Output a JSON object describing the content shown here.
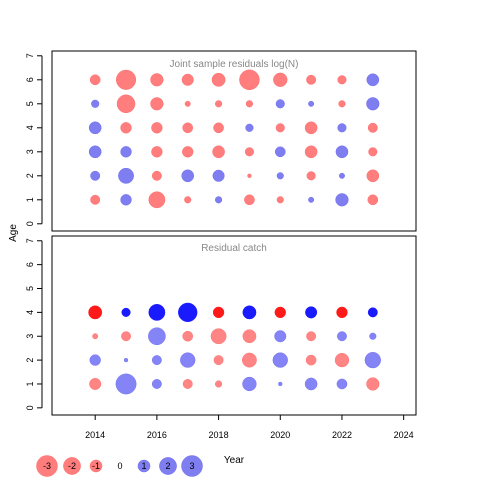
{
  "chart_data": [
    {
      "type": "bubble",
      "title": "Joint sample residuals log(N)",
      "ylabel": "Age",
      "ylim": [
        -0.3,
        7.2
      ],
      "yticks": [
        0,
        1,
        2,
        3,
        4,
        5,
        6,
        7
      ],
      "x": [
        2014,
        2015,
        2016,
        2017,
        2018,
        2019,
        2020,
        2021,
        2022,
        2023
      ],
      "ages": [
        1,
        2,
        3,
        4,
        5,
        6
      ],
      "rows": {
        "6": [
          -0.7,
          -2.6,
          -1.1,
          -0.9,
          -1.2,
          -2.7,
          -1.3,
          -0.6,
          -0.5,
          1.0
        ],
        "5": [
          0.4,
          -2.2,
          -1.1,
          -0.2,
          -0.3,
          -0.3,
          0.5,
          0.2,
          -0.3,
          1.1
        ],
        "4": [
          1.0,
          -0.8,
          -0.8,
          -0.7,
          -0.7,
          0.4,
          -0.5,
          -1.0,
          0.5,
          -0.6
        ],
        "3": [
          1.0,
          0.8,
          -0.8,
          -0.8,
          -1.0,
          -0.5,
          0.7,
          -1.0,
          1.0,
          -0.5
        ],
        "2": [
          0.6,
          1.6,
          -0.6,
          1.0,
          0.9,
          -0.1,
          0.3,
          -0.5,
          0.2,
          -1.0
        ],
        "1": [
          -0.6,
          0.8,
          -1.8,
          -0.3,
          0.3,
          -0.7,
          -0.3,
          0.2,
          1.1,
          -0.7
        ]
      }
    },
    {
      "type": "bubble",
      "title": "Residual catch",
      "xlabel": "Year",
      "ylabel": "Age",
      "xlim": [
        2012.6,
        2024.4
      ],
      "ylim": [
        -0.3,
        7.2
      ],
      "xticks": [
        2014,
        2016,
        2018,
        2020,
        2022,
        2024
      ],
      "yticks": [
        0,
        1,
        2,
        3,
        4,
        5,
        6,
        7
      ],
      "x": [
        2014,
        2015,
        2016,
        2017,
        2018,
        2019,
        2020,
        2021,
        2022,
        2023
      ],
      "ages": [
        1,
        2,
        3,
        4
      ],
      "rows": {
        "4": [
          -1.2,
          0.5,
          1.8,
          2.4,
          -0.8,
          1.2,
          -0.8,
          0.9,
          -0.8,
          0.6
        ],
        "3": [
          -0.2,
          -0.6,
          2.0,
          -0.7,
          -1.6,
          -1.2,
          0.9,
          -0.6,
          0.6,
          0.3
        ],
        "2": [
          0.8,
          0.1,
          0.6,
          1.5,
          -0.6,
          -1.4,
          1.5,
          -0.7,
          -1.3,
          1.7
        ],
        "1": [
          -0.9,
          2.8,
          0.6,
          -0.6,
          -0.3,
          1.3,
          0.1,
          1.0,
          0.7,
          -1.1
        ]
      }
    }
  ],
  "legend": {
    "items": [
      {
        "label": "-3",
        "value": -3
      },
      {
        "label": "-2",
        "value": -2
      },
      {
        "label": "-1",
        "value": -1
      },
      {
        "label": "0",
        "value": 0
      },
      {
        "label": "1",
        "value": 1
      },
      {
        "label": "2",
        "value": 2
      },
      {
        "label": "3",
        "value": 3
      }
    ],
    "placement": "bottom-left"
  },
  "colors": {
    "panel1_negative": "#ff6f6f",
    "panel1_positive": "#7070f0",
    "panel2_negative_light": "#ff7777",
    "panel2_positive_light": "#7777f5",
    "panel2_negative_strong": "#ff1a1a",
    "panel2_positive_strong": "#1a1aff",
    "title_text": "#888888",
    "axis": "#000000"
  }
}
